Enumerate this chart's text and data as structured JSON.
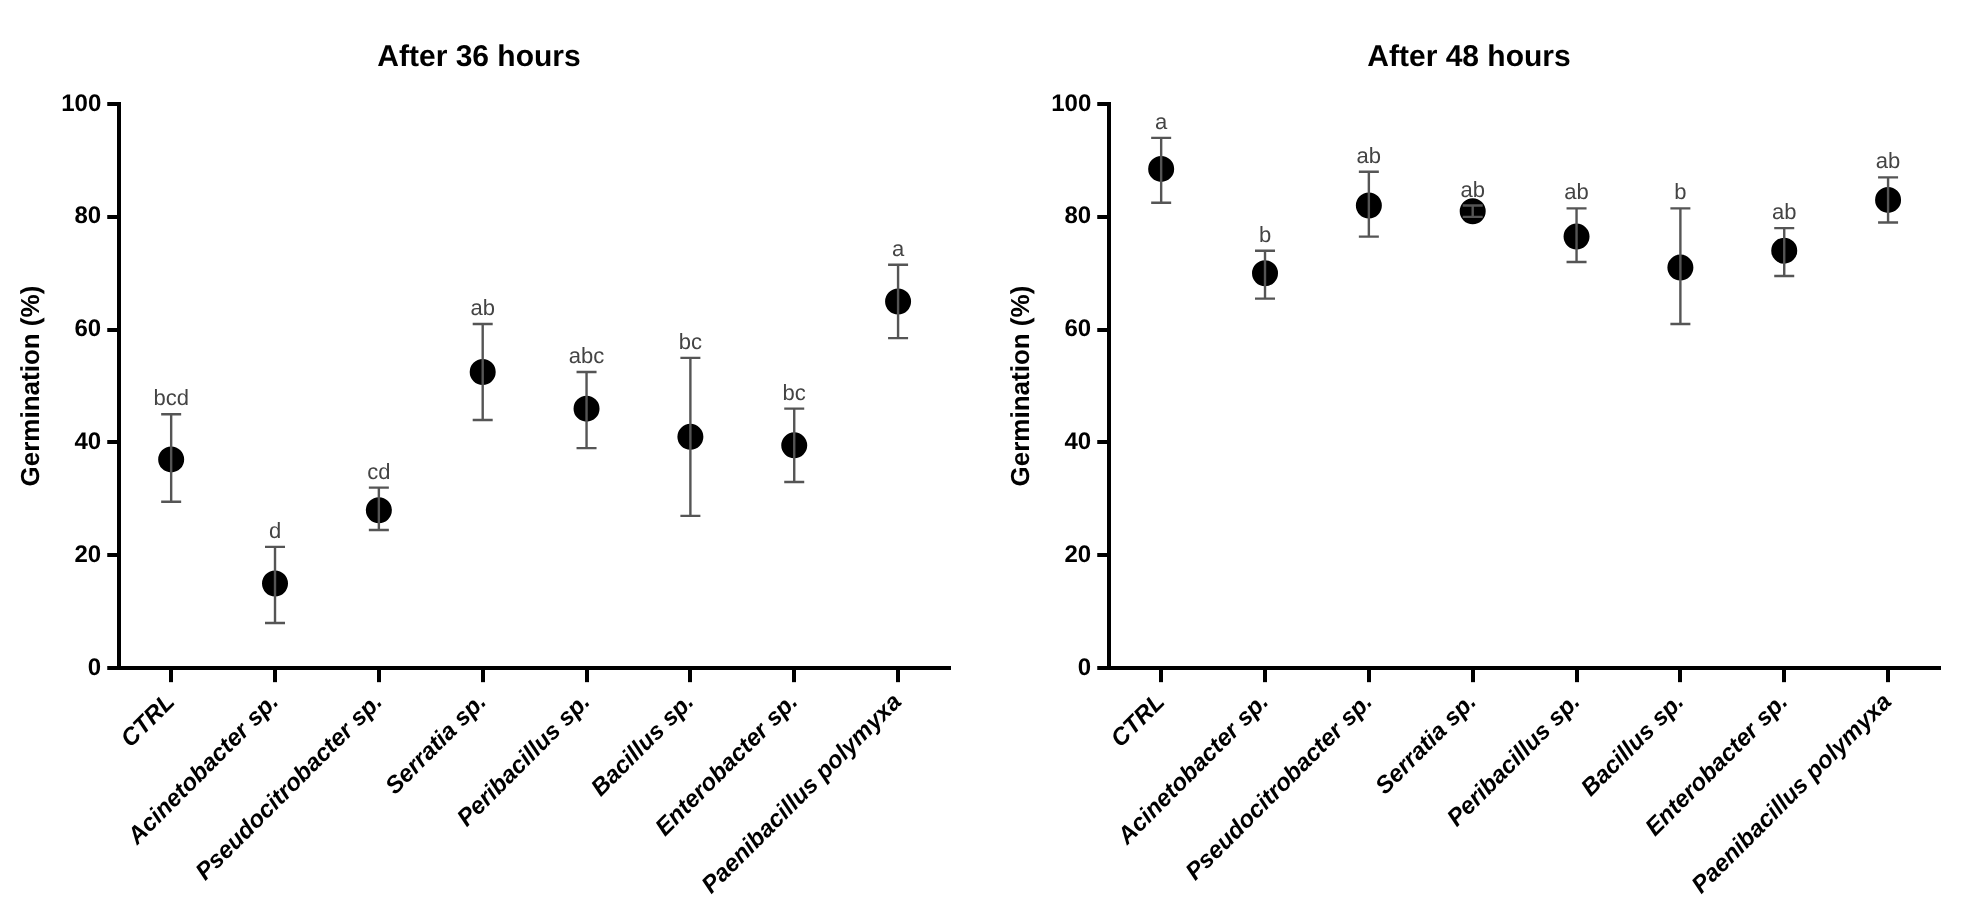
{
  "chart_data": [
    {
      "type": "scatter",
      "title": "After 36 hours",
      "ylabel": "Germination (%)",
      "categories": [
        "CTRL",
        "Acinetobacter sp.",
        "Pseudocitrobacter sp.",
        "Serratia sp.",
        "Peribacillus sp.",
        "Bacillus sp.",
        "Enterobacter sp.",
        "Paenibacillus polymyxa"
      ],
      "series": [
        {
          "color": "#000000",
          "values": [
            37,
            15,
            28,
            52.5,
            46,
            41,
            39.5,
            65
          ],
          "errors": [
            [
              29.5,
              45
            ],
            [
              8,
              21.5
            ],
            [
              24.5,
              32
            ],
            [
              44,
              61
            ],
            [
              39,
              52.5
            ],
            [
              27,
              55
            ],
            [
              33,
              46
            ],
            [
              58.5,
              71.5
            ]
          ]
        }
      ],
      "ylim": [
        0,
        100
      ],
      "yticks": [
        0,
        20,
        40,
        60,
        80,
        100
      ],
      "marker": "circle",
      "grid": false,
      "annotations": [
        {
          "text": "bcd",
          "x": "CTRL",
          "y": 45
        },
        {
          "text": "d",
          "x": "Acinetobacter sp.",
          "y": 21.5
        },
        {
          "text": "cd",
          "x": "Pseudocitrobacter sp.",
          "y": 32
        },
        {
          "text": "ab",
          "x": "Serratia sp.",
          "y": 61
        },
        {
          "text": "abc",
          "x": "Peribacillus sp.",
          "y": 52.5
        },
        {
          "text": "bc",
          "x": "Bacillus sp.",
          "y": 55
        },
        {
          "text": "bc",
          "x": "Enterobacter sp.",
          "y": 46
        },
        {
          "text": "a",
          "x": "Paenibacillus polymyxa",
          "y": 71.5
        }
      ]
    },
    {
      "type": "scatter",
      "title": "After 48 hours",
      "ylabel": "Germination (%)",
      "categories": [
        "CTRL",
        "Acinetobacter sp.",
        "Pseudocitrobacter sp.",
        "Serratia sp.",
        "Peribacillus sp.",
        "Bacillus sp.",
        "Enterobacter sp.",
        "Paenibacillus polymyxa"
      ],
      "series": [
        {
          "color": "#000000",
          "values": [
            88.5,
            70,
            82,
            81,
            76.5,
            71,
            74,
            83
          ],
          "errors": [
            [
              82.5,
              94
            ],
            [
              65.5,
              74
            ],
            [
              76.5,
              88
            ],
            [
              80,
              82
            ],
            [
              72,
              81.5
            ],
            [
              61,
              81.5
            ],
            [
              69.5,
              78
            ],
            [
              79,
              87
            ]
          ]
        }
      ],
      "ylim": [
        0,
        100
      ],
      "yticks": [
        0,
        20,
        40,
        60,
        80,
        100
      ],
      "marker": "circle",
      "grid": false,
      "annotations": [
        {
          "text": "a",
          "x": "CTRL",
          "y": 94
        },
        {
          "text": "b",
          "x": "Acinetobacter sp.",
          "y": 74
        },
        {
          "text": "ab",
          "x": "Pseudocitrobacter sp.",
          "y": 88
        },
        {
          "text": "ab",
          "x": "Serratia sp.",
          "y": 82
        },
        {
          "text": "ab",
          "x": "Peribacillus sp.",
          "y": 81.5
        },
        {
          "text": "b",
          "x": "Bacillus sp.",
          "y": 81.5
        },
        {
          "text": "ab",
          "x": "Enterobacter sp.",
          "y": 78
        },
        {
          "text": "ab",
          "x": "Paenibacillus polymyxa",
          "y": 87
        }
      ]
    }
  ]
}
